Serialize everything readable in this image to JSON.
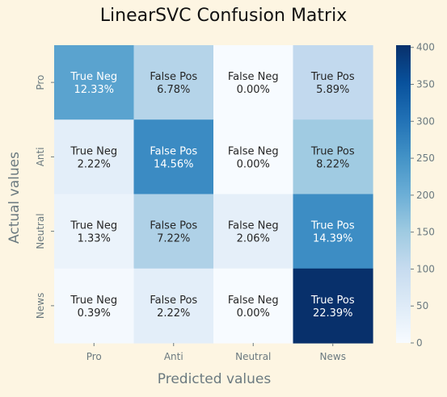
{
  "chart_data": {
    "type": "heatmap",
    "title": "LinearSVC Confusion Matrix",
    "xlabel": "Predicted values",
    "ylabel": "Actual values",
    "x_categories": [
      "Pro",
      "Anti",
      "Neutral",
      "News"
    ],
    "y_categories": [
      "Pro",
      "Anti",
      "Neutral",
      "News"
    ],
    "cell_labels": [
      [
        "True Neg",
        "False Pos",
        "False Neg",
        "True Pos"
      ],
      [
        "True Neg",
        "False Pos",
        "False Neg",
        "True Pos"
      ],
      [
        "True Neg",
        "False Pos",
        "False Neg",
        "True Pos"
      ],
      [
        "True Neg",
        "False Pos",
        "False Neg",
        "True Pos"
      ]
    ],
    "cell_percent_labels": [
      [
        "12.33%",
        "6.78%",
        "0.00%",
        "5.89%"
      ],
      [
        "2.22%",
        "14.56%",
        "0.00%",
        "8.22%"
      ],
      [
        "1.33%",
        "7.22%",
        "2.06%",
        "14.39%"
      ],
      [
        "0.39%",
        "2.22%",
        "0.00%",
        "22.39%"
      ]
    ],
    "values": [
      [
        222,
        122,
        0,
        106
      ],
      [
        40,
        262,
        0,
        148
      ],
      [
        24,
        130,
        37,
        259
      ],
      [
        7,
        40,
        0,
        403
      ]
    ],
    "colorbar": {
      "colormap": "Blues",
      "range": [
        0,
        403
      ],
      "ticks": [
        0,
        50,
        100,
        150,
        200,
        250,
        300,
        350,
        400
      ]
    },
    "grid": false,
    "legend": "colorbar-right"
  }
}
